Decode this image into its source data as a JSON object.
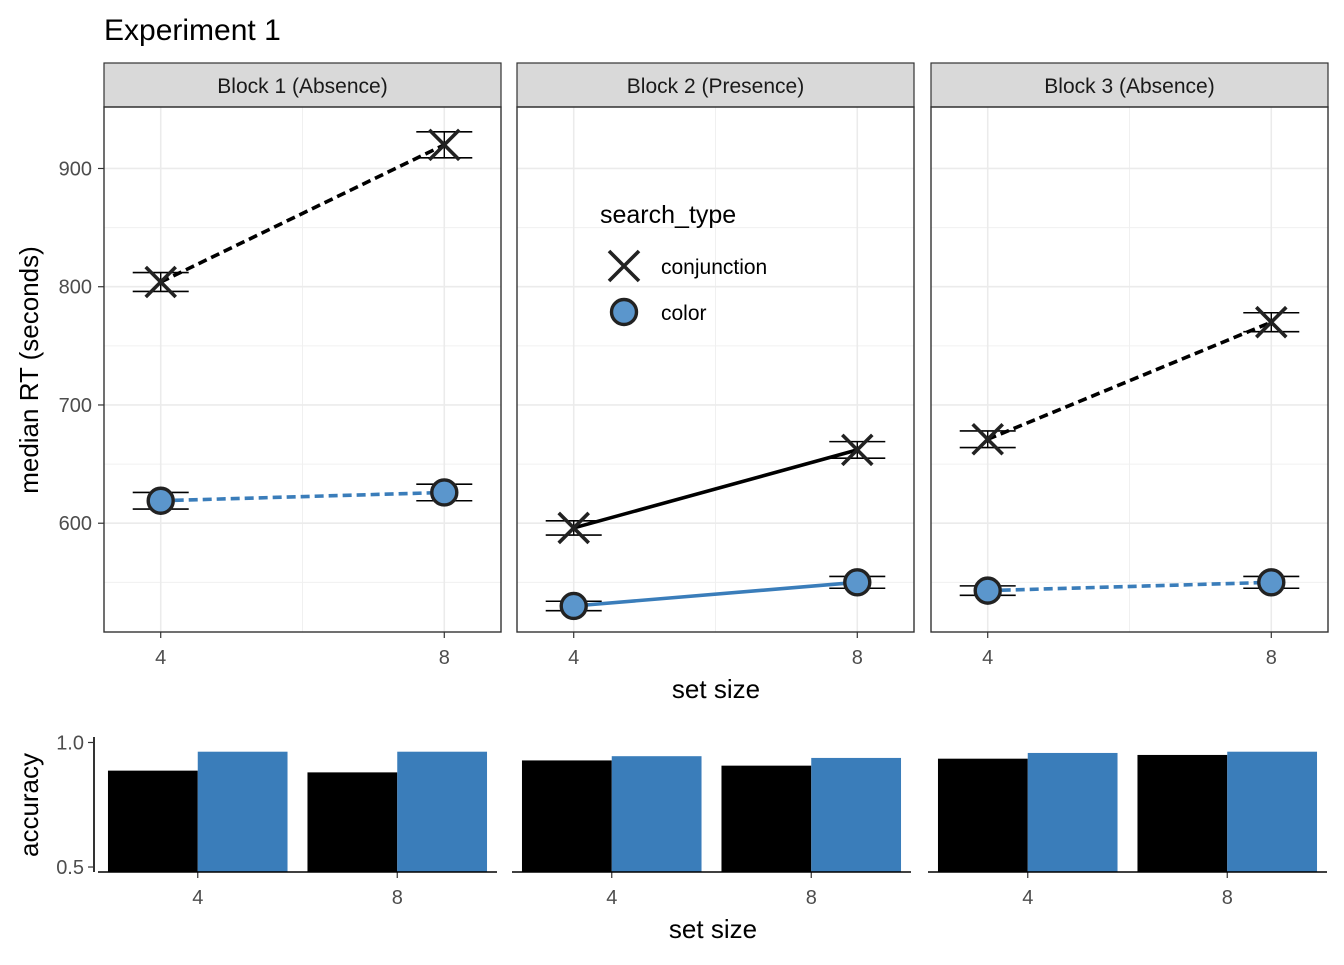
{
  "title": "Experiment 1",
  "rt_chart": {
    "type": "line",
    "ylabel": "median RT (seconds)",
    "xlabel": "set size",
    "x_ticks": [
      4,
      8
    ],
    "xlim": [
      3.2,
      8.8
    ],
    "y_ticks": [
      600,
      700,
      800,
      900
    ],
    "ylim": [
      508,
      952
    ],
    "legend": {
      "title": "search_type",
      "placement": "inside-panel-2-top-left",
      "entries": [
        "conjunction",
        "color"
      ]
    },
    "colors": {
      "conjunction": "#000000",
      "color": "#3a7dba",
      "color_point_fill": "#5b96cc"
    },
    "panels": [
      {
        "label": "Block 1 (Absence)",
        "line_style": "dashed",
        "series": [
          {
            "name": "conjunction",
            "x": [
              4,
              8
            ],
            "y": [
              804,
              920
            ],
            "err": [
              8,
              11
            ]
          },
          {
            "name": "color",
            "x": [
              4,
              8
            ],
            "y": [
              619,
              626
            ],
            "err": [
              7,
              7
            ]
          }
        ]
      },
      {
        "label": "Block 2 (Presence)",
        "line_style": "solid",
        "series": [
          {
            "name": "conjunction",
            "x": [
              4,
              8
            ],
            "y": [
              596,
              662
            ],
            "err": [
              6,
              7
            ]
          },
          {
            "name": "color",
            "x": [
              4,
              8
            ],
            "y": [
              530,
              550
            ],
            "err": [
              4,
              5
            ]
          }
        ]
      },
      {
        "label": "Block 3 (Absence)",
        "line_style": "dashed",
        "series": [
          {
            "name": "conjunction",
            "x": [
              4,
              8
            ],
            "y": [
              671,
              770
            ],
            "err": [
              7,
              8
            ]
          },
          {
            "name": "color",
            "x": [
              4,
              8
            ],
            "y": [
              543,
              550
            ],
            "err": [
              4,
              5
            ]
          }
        ]
      }
    ]
  },
  "accuracy_chart": {
    "type": "bar",
    "ylabel": "accuracy",
    "xlabel": "set size",
    "categories": [
      "4",
      "8"
    ],
    "y_ticks": [
      0.5,
      1.0
    ],
    "y_tick_labels": [
      "0.5",
      "1.0"
    ],
    "ylim": [
      0.48,
      1.01
    ],
    "panels": [
      {
        "series": [
          {
            "name": "conjunction",
            "values": [
              0.887,
              0.88
            ]
          },
          {
            "name": "color",
            "values": [
              0.963,
              0.963
            ]
          }
        ]
      },
      {
        "series": [
          {
            "name": "conjunction",
            "values": [
              0.928,
              0.907
            ]
          },
          {
            "name": "color",
            "values": [
              0.945,
              0.938
            ]
          }
        ]
      },
      {
        "series": [
          {
            "name": "conjunction",
            "values": [
              0.935,
              0.95
            ]
          },
          {
            "name": "color",
            "values": [
              0.958,
              0.963
            ]
          }
        ]
      }
    ]
  }
}
